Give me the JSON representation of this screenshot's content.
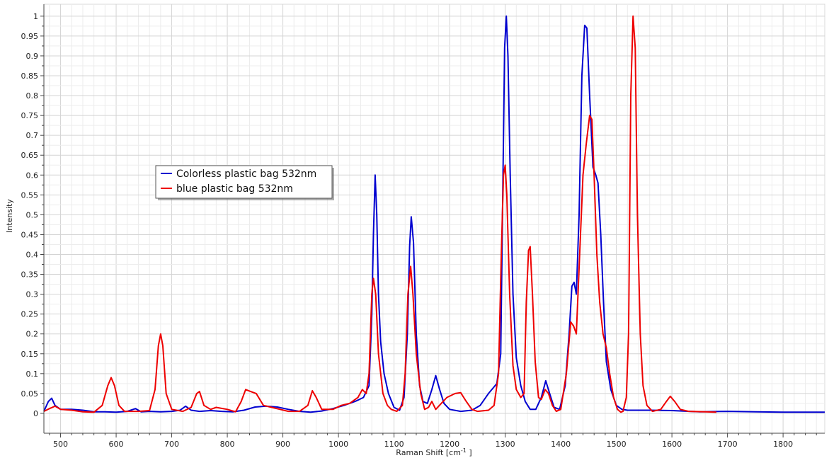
{
  "chart_data": {
    "type": "line",
    "title": "",
    "xlabel": "Raman Shift [cm",
    "xlabel_sup": "-1",
    "xlabel_end": " ]",
    "ylabel": "Intensity",
    "xlim": [
      470,
      1875
    ],
    "ylim": [
      -0.05,
      1.03
    ],
    "x_ticks": [
      500,
      600,
      700,
      800,
      900,
      1000,
      1100,
      1200,
      1300,
      1400,
      1500,
      1600,
      1700,
      1800
    ],
    "y_ticks": [
      0,
      0.05,
      0.1,
      0.15,
      0.2,
      0.25,
      0.3,
      0.35,
      0.4,
      0.45,
      0.5,
      0.55,
      0.6,
      0.65,
      0.7,
      0.75,
      0.8,
      0.85,
      0.9,
      0.95,
      1
    ],
    "grid": true,
    "legend_position": "upper-left",
    "series": [
      {
        "name": "Colorless plastic bag 532nm",
        "color": "#0000d0",
        "points": [
          [
            470,
            0.005
          ],
          [
            478,
            0.03
          ],
          [
            484,
            0.038
          ],
          [
            490,
            0.02
          ],
          [
            500,
            0.01
          ],
          [
            520,
            0.01
          ],
          [
            540,
            0.008
          ],
          [
            560,
            0.004
          ],
          [
            580,
            0.004
          ],
          [
            600,
            0.003
          ],
          [
            620,
            0.005
          ],
          [
            635,
            0.012
          ],
          [
            645,
            0.004
          ],
          [
            660,
            0.005
          ],
          [
            680,
            0.004
          ],
          [
            700,
            0.005
          ],
          [
            715,
            0.008
          ],
          [
            725,
            0.018
          ],
          [
            735,
            0.008
          ],
          [
            750,
            0.005
          ],
          [
            770,
            0.007
          ],
          [
            790,
            0.005
          ],
          [
            810,
            0.004
          ],
          [
            830,
            0.008
          ],
          [
            850,
            0.016
          ],
          [
            870,
            0.018
          ],
          [
            890,
            0.016
          ],
          [
            910,
            0.01
          ],
          [
            930,
            0.005
          ],
          [
            950,
            0.003
          ],
          [
            970,
            0.006
          ],
          [
            990,
            0.012
          ],
          [
            1010,
            0.02
          ],
          [
            1030,
            0.03
          ],
          [
            1045,
            0.04
          ],
          [
            1055,
            0.07
          ],
          [
            1060,
            0.25
          ],
          [
            1063,
            0.45
          ],
          [
            1066,
            0.6
          ],
          [
            1069,
            0.5
          ],
          [
            1072,
            0.3
          ],
          [
            1076,
            0.18
          ],
          [
            1082,
            0.1
          ],
          [
            1090,
            0.05
          ],
          [
            1100,
            0.015
          ],
          [
            1110,
            0.008
          ],
          [
            1118,
            0.04
          ],
          [
            1124,
            0.2
          ],
          [
            1128,
            0.42
          ],
          [
            1131,
            0.495
          ],
          [
            1135,
            0.43
          ],
          [
            1140,
            0.2
          ],
          [
            1146,
            0.07
          ],
          [
            1152,
            0.03
          ],
          [
            1160,
            0.025
          ],
          [
            1168,
            0.06
          ],
          [
            1175,
            0.095
          ],
          [
            1182,
            0.06
          ],
          [
            1190,
            0.025
          ],
          [
            1200,
            0.01
          ],
          [
            1220,
            0.005
          ],
          [
            1240,
            0.008
          ],
          [
            1255,
            0.02
          ],
          [
            1270,
            0.05
          ],
          [
            1285,
            0.075
          ],
          [
            1292,
            0.15
          ],
          [
            1296,
            0.6
          ],
          [
            1299,
            0.92
          ],
          [
            1302,
            1.0
          ],
          [
            1305,
            0.9
          ],
          [
            1309,
            0.6
          ],
          [
            1314,
            0.3
          ],
          [
            1320,
            0.14
          ],
          [
            1328,
            0.07
          ],
          [
            1336,
            0.03
          ],
          [
            1345,
            0.01
          ],
          [
            1355,
            0.01
          ],
          [
            1365,
            0.04
          ],
          [
            1373,
            0.082
          ],
          [
            1380,
            0.05
          ],
          [
            1388,
            0.015
          ],
          [
            1398,
            0.01
          ],
          [
            1408,
            0.07
          ],
          [
            1415,
            0.2
          ],
          [
            1420,
            0.32
          ],
          [
            1424,
            0.33
          ],
          [
            1428,
            0.3
          ],
          [
            1433,
            0.5
          ],
          [
            1438,
            0.85
          ],
          [
            1443,
            0.977
          ],
          [
            1447,
            0.97
          ],
          [
            1452,
            0.8
          ],
          [
            1458,
            0.62
          ],
          [
            1463,
            0.6
          ],
          [
            1467,
            0.58
          ],
          [
            1472,
            0.45
          ],
          [
            1477,
            0.28
          ],
          [
            1482,
            0.13
          ],
          [
            1490,
            0.06
          ],
          [
            1500,
            0.02
          ],
          [
            1510,
            0.01
          ],
          [
            1520,
            0.008
          ],
          [
            1560,
            0.008
          ],
          [
            1600,
            0.007
          ],
          [
            1650,
            0.004
          ],
          [
            1700,
            0.005
          ],
          [
            1750,
            0.004
          ],
          [
            1800,
            0.003
          ],
          [
            1875,
            0.003
          ]
        ]
      },
      {
        "name": "blue plastic bag 532nm",
        "color": "#ee0000",
        "points": [
          [
            470,
            0.005
          ],
          [
            480,
            0.012
          ],
          [
            490,
            0.018
          ],
          [
            500,
            0.01
          ],
          [
            520,
            0.008
          ],
          [
            540,
            0.004
          ],
          [
            560,
            0.003
          ],
          [
            575,
            0.02
          ],
          [
            585,
            0.07
          ],
          [
            591,
            0.09
          ],
          [
            597,
            0.07
          ],
          [
            605,
            0.02
          ],
          [
            615,
            0.005
          ],
          [
            640,
            0.005
          ],
          [
            660,
            0.007
          ],
          [
            670,
            0.06
          ],
          [
            676,
            0.17
          ],
          [
            680,
            0.2
          ],
          [
            684,
            0.17
          ],
          [
            690,
            0.05
          ],
          [
            700,
            0.01
          ],
          [
            720,
            0.005
          ],
          [
            735,
            0.015
          ],
          [
            745,
            0.05
          ],
          [
            750,
            0.055
          ],
          [
            758,
            0.02
          ],
          [
            770,
            0.01
          ],
          [
            780,
            0.015
          ],
          [
            800,
            0.01
          ],
          [
            815,
            0.004
          ],
          [
            825,
            0.03
          ],
          [
            833,
            0.06
          ],
          [
            842,
            0.055
          ],
          [
            852,
            0.05
          ],
          [
            865,
            0.02
          ],
          [
            880,
            0.015
          ],
          [
            895,
            0.01
          ],
          [
            910,
            0.005
          ],
          [
            930,
            0.005
          ],
          [
            945,
            0.02
          ],
          [
            953,
            0.057
          ],
          [
            960,
            0.04
          ],
          [
            970,
            0.01
          ],
          [
            990,
            0.01
          ],
          [
            1005,
            0.02
          ],
          [
            1020,
            0.025
          ],
          [
            1035,
            0.04
          ],
          [
            1043,
            0.06
          ],
          [
            1050,
            0.05
          ],
          [
            1055,
            0.1
          ],
          [
            1060,
            0.3
          ],
          [
            1063,
            0.34
          ],
          [
            1067,
            0.3
          ],
          [
            1072,
            0.15
          ],
          [
            1080,
            0.05
          ],
          [
            1088,
            0.02
          ],
          [
            1095,
            0.01
          ],
          [
            1105,
            0.005
          ],
          [
            1115,
            0.02
          ],
          [
            1120,
            0.1
          ],
          [
            1125,
            0.3
          ],
          [
            1130,
            0.37
          ],
          [
            1134,
            0.3
          ],
          [
            1140,
            0.15
          ],
          [
            1148,
            0.05
          ],
          [
            1155,
            0.01
          ],
          [
            1162,
            0.015
          ],
          [
            1168,
            0.03
          ],
          [
            1175,
            0.01
          ],
          [
            1185,
            0.025
          ],
          [
            1195,
            0.04
          ],
          [
            1210,
            0.05
          ],
          [
            1220,
            0.052
          ],
          [
            1230,
            0.03
          ],
          [
            1240,
            0.01
          ],
          [
            1250,
            0.005
          ],
          [
            1270,
            0.008
          ],
          [
            1280,
            0.02
          ],
          [
            1288,
            0.1
          ],
          [
            1293,
            0.4
          ],
          [
            1297,
            0.6
          ],
          [
            1300,
            0.625
          ],
          [
            1303,
            0.55
          ],
          [
            1308,
            0.3
          ],
          [
            1314,
            0.12
          ],
          [
            1320,
            0.06
          ],
          [
            1328,
            0.04
          ],
          [
            1334,
            0.05
          ],
          [
            1338,
            0.28
          ],
          [
            1342,
            0.41
          ],
          [
            1345,
            0.42
          ],
          [
            1349,
            0.3
          ],
          [
            1354,
            0.13
          ],
          [
            1360,
            0.04
          ],
          [
            1365,
            0.035
          ],
          [
            1372,
            0.06
          ],
          [
            1378,
            0.05
          ],
          [
            1385,
            0.02
          ],
          [
            1392,
            0.005
          ],
          [
            1400,
            0.01
          ],
          [
            1410,
            0.1
          ],
          [
            1418,
            0.23
          ],
          [
            1423,
            0.22
          ],
          [
            1428,
            0.2
          ],
          [
            1434,
            0.4
          ],
          [
            1440,
            0.6
          ],
          [
            1446,
            0.68
          ],
          [
            1452,
            0.75
          ],
          [
            1456,
            0.74
          ],
          [
            1460,
            0.6
          ],
          [
            1465,
            0.4
          ],
          [
            1470,
            0.28
          ],
          [
            1476,
            0.2
          ],
          [
            1482,
            0.165
          ],
          [
            1488,
            0.1
          ],
          [
            1495,
            0.04
          ],
          [
            1502,
            0.01
          ],
          [
            1508,
            0.003
          ],
          [
            1512,
            0.005
          ],
          [
            1518,
            0.04
          ],
          [
            1522,
            0.2
          ],
          [
            1526,
            0.8
          ],
          [
            1530,
            1.0
          ],
          [
            1534,
            0.92
          ],
          [
            1538,
            0.5
          ],
          [
            1543,
            0.2
          ],
          [
            1548,
            0.07
          ],
          [
            1555,
            0.02
          ],
          [
            1565,
            0.005
          ],
          [
            1580,
            0.01
          ],
          [
            1590,
            0.03
          ],
          [
            1597,
            0.043
          ],
          [
            1605,
            0.03
          ],
          [
            1615,
            0.01
          ],
          [
            1630,
            0.005
          ],
          [
            1660,
            0.004
          ],
          [
            1680,
            0.003
          ]
        ]
      }
    ]
  }
}
